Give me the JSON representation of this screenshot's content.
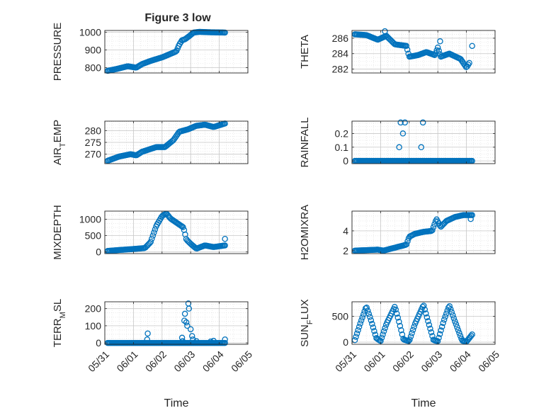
{
  "figure": {
    "title": "Figure 3 low"
  },
  "chart_data": [
    {
      "type": "scatter",
      "ylabel": "PRESSURE",
      "xlabel": "",
      "title": "Figure 3 low",
      "xlim": [
        0,
        5
      ],
      "ylim": [
        770,
        1010
      ],
      "yticks": [
        800,
        900,
        1000
      ],
      "yticklabels": [
        "800",
        "900",
        "1000"
      ],
      "xticks": [
        0,
        1,
        2,
        3,
        4,
        5
      ],
      "xticklabels": [
        "05/31",
        "06/01",
        "06/02",
        "06/03",
        "06/04",
        "06/05"
      ],
      "show_xticklabels": false,
      "anchors": [
        [
          0.1,
          782
        ],
        [
          0.4,
          792
        ],
        [
          0.8,
          808
        ],
        [
          1.1,
          800
        ],
        [
          1.3,
          820
        ],
        [
          1.6,
          838
        ],
        [
          2.0,
          858
        ],
        [
          2.3,
          878
        ],
        [
          2.5,
          892
        ],
        [
          2.6,
          930
        ],
        [
          2.7,
          955
        ],
        [
          2.8,
          960
        ],
        [
          2.95,
          978
        ],
        [
          3.1,
          998
        ],
        [
          3.3,
          1002
        ],
        [
          3.6,
          1000
        ],
        [
          4.2,
          998
        ]
      ]
    },
    {
      "type": "scatter",
      "ylabel": "THETA",
      "xlabel": "",
      "xlim": [
        0,
        5
      ],
      "ylim": [
        281.5,
        287.0
      ],
      "yticks": [
        282,
        284,
        286
      ],
      "yticklabels": [
        "282",
        "284",
        "286"
      ],
      "xticks": [
        0,
        1,
        2,
        3,
        4,
        5
      ],
      "xticklabels": [
        "05/31",
        "06/01",
        "06/02",
        "06/03",
        "06/04",
        "06/05"
      ],
      "show_xticklabels": false,
      "anchors": [
        [
          0.1,
          286.5
        ],
        [
          0.5,
          286.4
        ],
        [
          0.9,
          285.8
        ],
        [
          1.2,
          286.3
        ],
        [
          1.5,
          285.2
        ],
        [
          1.9,
          285.0
        ],
        [
          2.0,
          283.6
        ],
        [
          2.3,
          283.8
        ],
        [
          2.6,
          284.2
        ],
        [
          2.9,
          283.8
        ],
        [
          3.0,
          284.8
        ],
        [
          3.1,
          283.6
        ],
        [
          3.4,
          284.0
        ],
        [
          3.8,
          283.3
        ],
        [
          4.0,
          282.2
        ],
        [
          4.1,
          282.8
        ]
      ],
      "outliers": [
        [
          1.15,
          286.9
        ],
        [
          3.08,
          285.6
        ],
        [
          4.2,
          285.0
        ]
      ]
    },
    {
      "type": "scatter",
      "ylabel": "AIR_TEMP",
      "xlabel": "",
      "xlim": [
        0,
        5
      ],
      "ylim": [
        266,
        284
      ],
      "yticks": [
        270,
        275,
        280
      ],
      "yticklabels": [
        "270",
        "275",
        "280"
      ],
      "xticks": [
        0,
        1,
        2,
        3,
        4,
        5
      ],
      "xticklabels": [
        "05/31",
        "06/01",
        "06/02",
        "06/03",
        "06/04",
        "06/05"
      ],
      "show_xticklabels": false,
      "anchors": [
        [
          0.1,
          267.2
        ],
        [
          0.5,
          269.0
        ],
        [
          0.9,
          270.0
        ],
        [
          1.1,
          269.5
        ],
        [
          1.3,
          271.0
        ],
        [
          1.8,
          273.0
        ],
        [
          2.1,
          273.0
        ],
        [
          2.4,
          276.0
        ],
        [
          2.6,
          279.5
        ],
        [
          2.9,
          280.5
        ],
        [
          3.2,
          282.0
        ],
        [
          3.5,
          282.5
        ],
        [
          3.8,
          281.5
        ],
        [
          4.2,
          283.0
        ]
      ]
    },
    {
      "type": "scatter",
      "ylabel": "RAINFALL",
      "xlabel": "",
      "xlim": [
        0,
        5
      ],
      "ylim": [
        -0.02,
        0.29
      ],
      "yticks": [
        0,
        0.1,
        0.2
      ],
      "yticklabels": [
        "0",
        "0.1",
        "0.2"
      ],
      "xticks": [
        0,
        1,
        2,
        3,
        4,
        5
      ],
      "xticklabels": [
        "05/31",
        "06/01",
        "06/02",
        "06/03",
        "06/04",
        "06/05"
      ],
      "show_xticklabels": false,
      "anchors": [
        [
          0.1,
          0
        ],
        [
          4.2,
          0
        ]
      ],
      "outliers": [
        [
          1.65,
          0.1
        ],
        [
          1.7,
          0.28
        ],
        [
          1.78,
          0.2
        ],
        [
          1.85,
          0.28
        ],
        [
          2.42,
          0.1
        ],
        [
          2.48,
          0.28
        ]
      ]
    },
    {
      "type": "scatter",
      "ylabel": "MIXDEPTH",
      "xlabel": "",
      "xlim": [
        0,
        5
      ],
      "ylim": [
        -50,
        1250
      ],
      "yticks": [
        0,
        500,
        1000
      ],
      "yticklabels": [
        "0",
        "500",
        "1000"
      ],
      "xticks": [
        0,
        1,
        2,
        3,
        4,
        5
      ],
      "xticklabels": [
        "05/31",
        "06/01",
        "06/02",
        "06/03",
        "06/04",
        "06/05"
      ],
      "show_xticklabels": false,
      "anchors": [
        [
          0.1,
          30
        ],
        [
          0.5,
          60
        ],
        [
          1.0,
          90
        ],
        [
          1.4,
          120
        ],
        [
          1.6,
          300
        ],
        [
          1.8,
          800
        ],
        [
          2.0,
          1100
        ],
        [
          2.15,
          1180
        ],
        [
          2.3,
          1020
        ],
        [
          2.5,
          900
        ],
        [
          2.75,
          750
        ],
        [
          2.85,
          380
        ],
        [
          3.0,
          250
        ],
        [
          3.2,
          100
        ],
        [
          3.5,
          200
        ],
        [
          3.8,
          150
        ],
        [
          4.2,
          200
        ]
      ],
      "outliers": [
        [
          4.2,
          400
        ]
      ]
    },
    {
      "type": "scatter",
      "ylabel": "H2OMIXRA",
      "xlabel": "",
      "xlim": [
        0,
        5
      ],
      "ylim": [
        1.7,
        6.0
      ],
      "yticks": [
        2,
        4
      ],
      "yticklabels": [
        "2",
        "4"
      ],
      "xticks": [
        0,
        1,
        2,
        3,
        4,
        5
      ],
      "xticklabels": [
        "05/31",
        "06/01",
        "06/02",
        "06/03",
        "06/04",
        "06/05"
      ],
      "show_xticklabels": false,
      "anchors": [
        [
          0.1,
          2.0
        ],
        [
          0.9,
          2.1
        ],
        [
          1.1,
          2.0
        ],
        [
          1.5,
          2.3
        ],
        [
          1.9,
          2.6
        ],
        [
          2.0,
          3.4
        ],
        [
          2.2,
          3.7
        ],
        [
          2.5,
          3.9
        ],
        [
          2.8,
          4.0
        ],
        [
          2.95,
          5.2
        ],
        [
          3.1,
          4.4
        ],
        [
          3.3,
          5.0
        ],
        [
          3.6,
          5.4
        ],
        [
          3.9,
          5.6
        ],
        [
          4.2,
          5.6
        ]
      ],
      "outliers": [
        [
          4.15,
          5.2
        ]
      ]
    },
    {
      "type": "scatter",
      "ylabel": "TERR_MSL",
      "xlabel": "Time",
      "xlim": [
        0,
        5
      ],
      "ylim": [
        -8,
        240
      ],
      "yticks": [
        0,
        100,
        200
      ],
      "yticklabels": [
        "0",
        "100",
        "200"
      ],
      "xticks": [
        0,
        1,
        2,
        3,
        4,
        5
      ],
      "xticklabels": [
        "05/31",
        "06/01",
        "06/02",
        "06/03",
        "06/04",
        "06/05"
      ],
      "show_xticklabels": true,
      "anchors": [
        [
          0.1,
          0
        ],
        [
          4.2,
          0
        ]
      ],
      "outliers": [
        [
          1.5,
          55
        ],
        [
          1.48,
          20
        ],
        [
          2.7,
          30
        ],
        [
          2.72,
          10
        ],
        [
          2.78,
          130
        ],
        [
          2.8,
          170
        ],
        [
          2.85,
          120
        ],
        [
          2.88,
          100
        ],
        [
          2.92,
          230
        ],
        [
          2.94,
          200
        ],
        [
          3.0,
          80
        ],
        [
          3.05,
          40
        ],
        [
          3.08,
          20
        ],
        [
          3.2,
          10
        ],
        [
          3.7,
          8
        ],
        [
          3.8,
          12
        ],
        [
          4.2,
          20
        ]
      ]
    },
    {
      "type": "scatter",
      "ylabel": "SUN_FLUX",
      "xlabel": "Time",
      "xlim": [
        0,
        5
      ],
      "ylim": [
        -40,
        780
      ],
      "yticks": [
        0,
        500
      ],
      "yticklabels": [
        "0",
        "500"
      ],
      "xticks": [
        0,
        1,
        2,
        3,
        4,
        5
      ],
      "xticklabels": [
        "05/31",
        "06/01",
        "06/02",
        "06/03",
        "06/04",
        "06/05"
      ],
      "show_xticklabels": true,
      "anchors": [
        [
          0.1,
          40
        ],
        [
          0.3,
          380
        ],
        [
          0.5,
          690
        ],
        [
          0.65,
          450
        ],
        [
          0.85,
          80
        ],
        [
          1.0,
          20
        ],
        [
          1.2,
          350
        ],
        [
          1.5,
          690
        ],
        [
          1.65,
          380
        ],
        [
          1.8,
          50
        ],
        [
          2.0,
          20
        ],
        [
          2.2,
          350
        ],
        [
          2.5,
          720
        ],
        [
          2.65,
          420
        ],
        [
          2.85,
          40
        ],
        [
          3.0,
          20
        ],
        [
          3.2,
          400
        ],
        [
          3.4,
          710
        ],
        [
          3.6,
          400
        ],
        [
          3.85,
          30
        ],
        [
          4.0,
          10
        ],
        [
          4.2,
          150
        ]
      ]
    }
  ]
}
